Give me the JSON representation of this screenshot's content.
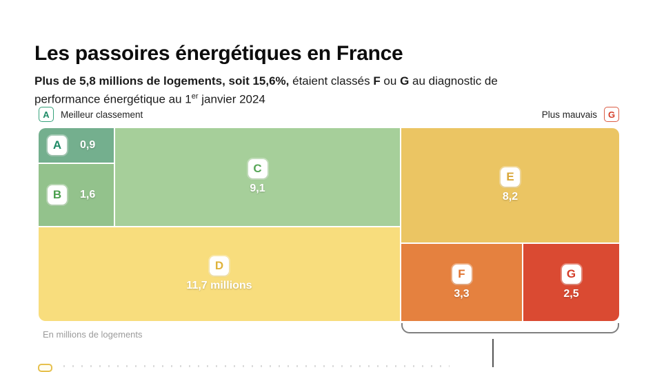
{
  "title": "Les passoires énergétiques en France",
  "subtitle": {
    "bold_intro": "Plus de 5,8 millions de logements, soit 15,6%,",
    "regular_1": " étaient classés ",
    "bold_f": "F",
    "regular_2": " ou ",
    "bold_g": "G",
    "regular_3": " au diagnostic de performance énergétique au 1",
    "superscript": "er",
    "regular_4": " janvier 2024"
  },
  "legend": {
    "best": {
      "badge": "A",
      "label": "Meilleur classement"
    },
    "worst": {
      "badge": "G",
      "label": "Plus mauvais"
    }
  },
  "footnote": "En millions de logements",
  "cells": [
    {
      "grade": "A",
      "label": "0,9",
      "color": "#74af8e",
      "letter_color": "#1e8a66"
    },
    {
      "grade": "B",
      "label": "1,6",
      "color": "#93c28c",
      "letter_color": "#4ba04e"
    },
    {
      "grade": "C",
      "label": "9,1",
      "color": "#a6cf9a",
      "letter_color": "#57a657"
    },
    {
      "grade": "D",
      "label": "11,7 millions",
      "color": "#f8dd7d",
      "letter_color": "#dfb33c"
    },
    {
      "grade": "E",
      "label": "8,2",
      "color": "#ebc563",
      "letter_color": "#d8a637"
    },
    {
      "grade": "F",
      "label": "3,3",
      "color": "#e5813f",
      "letter_color": "#e0722f"
    },
    {
      "grade": "G",
      "label": "2,5",
      "color": "#da4a32",
      "letter_color": "#d43d28"
    }
  ],
  "chart_data": {
    "type": "treemap",
    "title": "Les passoires énergétiques en France",
    "subtitle": "Plus de 5,8 millions de logements, soit 15,6%, étaient classés F ou G au diagnostic de performance énergétique au 1er janvier 2024",
    "unit_note": "En millions de logements",
    "categories": [
      "A",
      "B",
      "C",
      "D",
      "E",
      "F",
      "G"
    ],
    "values": [
      0.9,
      1.6,
      9.1,
      11.7,
      8.2,
      3.3,
      2.5
    ],
    "value_labels": [
      "0,9",
      "1,6",
      "9,1",
      "11,7 millions",
      "8,2",
      "3,3",
      "2,5"
    ],
    "highlight_group": {
      "members": [
        "F",
        "G"
      ],
      "total": 5.8,
      "share": "15,6%"
    },
    "legend": {
      "best": "Meilleur classement",
      "worst": "Plus mauvais"
    },
    "colors": {
      "A": "#74af8e",
      "B": "#93c28c",
      "C": "#a6cf9a",
      "D": "#f8dd7d",
      "E": "#ebc563",
      "F": "#e5813f",
      "G": "#da4a32"
    }
  }
}
